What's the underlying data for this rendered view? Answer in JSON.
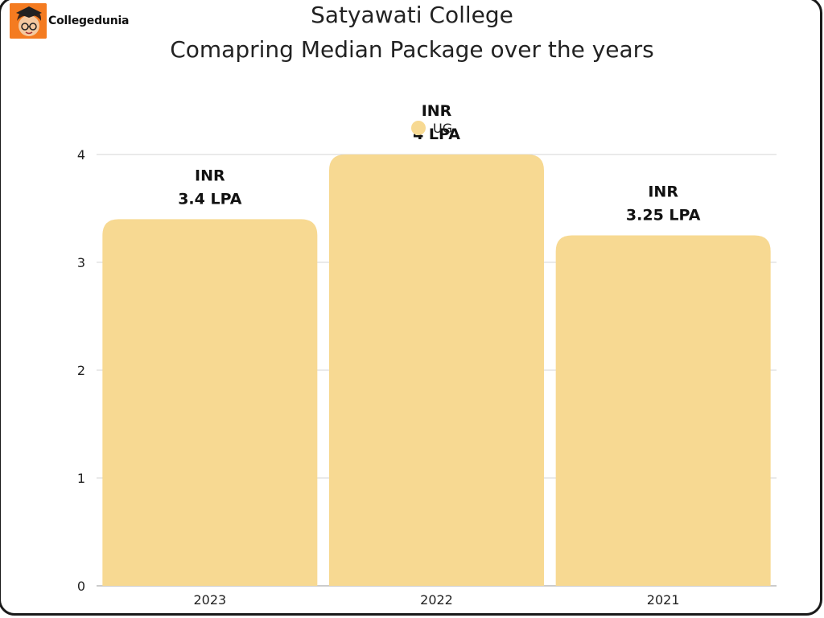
{
  "brand": {
    "logo_text": "Collegedunia",
    "logo_color": "#f47b20"
  },
  "chart_data": {
    "type": "bar",
    "title": "Satyawati College",
    "subtitle": "Comapring Median Package over the years",
    "categories": [
      "2023",
      "2022",
      "2021"
    ],
    "series": [
      {
        "name": "UG",
        "values": [
          3.4,
          4,
          3.25
        ],
        "color": "#f7d992",
        "data_labels": [
          [
            "INR",
            "3.4 LPA"
          ],
          [
            "INR",
            "4 LPA"
          ],
          [
            "INR",
            "3.25 LPA"
          ]
        ]
      }
    ],
    "y_ticks": [
      "0",
      "1",
      "2",
      "3",
      "4"
    ],
    "ylim": [
      0,
      4
    ],
    "grid": true,
    "legend": "top-center"
  }
}
